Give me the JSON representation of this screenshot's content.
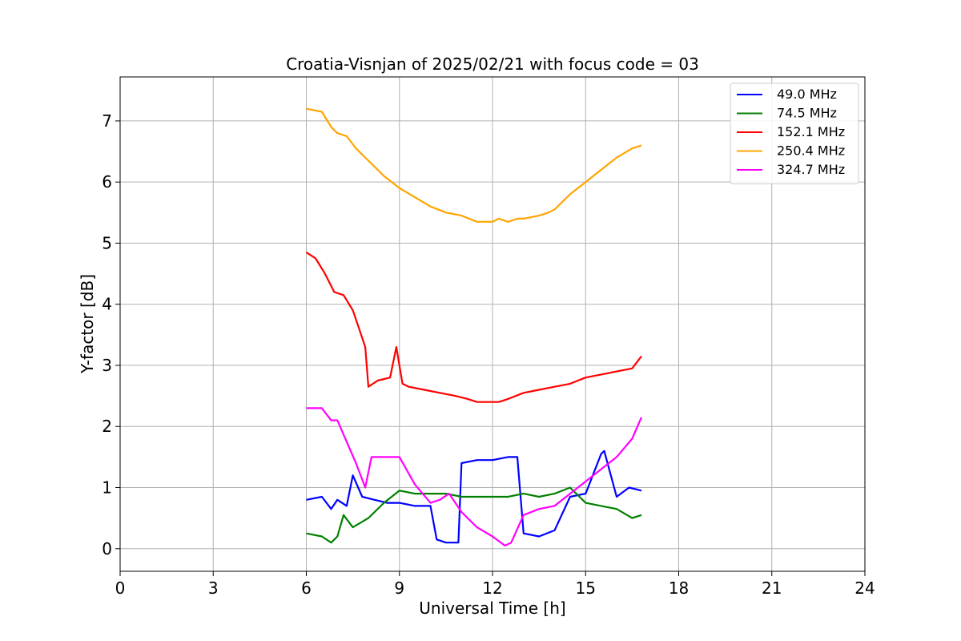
{
  "chart_data": {
    "type": "line",
    "title": "Croatia-Visnjan of 2025/02/21 with focus code = 03",
    "xlabel": "Universal Time [h]",
    "ylabel": "Y-factor [dB]",
    "xlim": [
      0,
      24
    ],
    "ylim": [
      -0.37,
      7.72
    ],
    "xticks": [
      "0",
      "3",
      "6",
      "9",
      "12",
      "15",
      "18",
      "21",
      "24"
    ],
    "yticks": [
      "0",
      "1",
      "2",
      "3",
      "4",
      "5",
      "6",
      "7"
    ],
    "grid": true,
    "legend_position": "top-right",
    "series": [
      {
        "name": "49.0 MHz",
        "color": "#0000ff",
        "x": [
          6.0,
          6.5,
          6.8,
          7.0,
          7.3,
          7.5,
          7.8,
          8.2,
          8.6,
          9.0,
          9.5,
          10.0,
          10.2,
          10.5,
          10.9,
          11.0,
          11.5,
          12.0,
          12.5,
          12.8,
          13.0,
          13.5,
          14.0,
          14.5,
          15.0,
          15.5,
          15.6,
          16.0,
          16.4,
          16.8
        ],
        "y": [
          0.8,
          0.85,
          0.65,
          0.8,
          0.7,
          1.2,
          0.85,
          0.8,
          0.75,
          0.75,
          0.7,
          0.7,
          0.15,
          0.1,
          0.1,
          1.4,
          1.45,
          1.45,
          1.5,
          1.5,
          0.25,
          0.2,
          0.3,
          0.85,
          0.9,
          1.55,
          1.6,
          0.85,
          1.0,
          0.95
        ]
      },
      {
        "name": "74.5 MHz",
        "color": "#008000",
        "x": [
          6.0,
          6.5,
          6.8,
          7.0,
          7.2,
          7.5,
          8.0,
          8.5,
          9.0,
          9.5,
          10.0,
          10.5,
          11.0,
          11.5,
          12.0,
          12.5,
          13.0,
          13.5,
          14.0,
          14.5,
          15.0,
          15.5,
          16.0,
          16.5,
          16.8
        ],
        "y": [
          0.25,
          0.2,
          0.1,
          0.2,
          0.55,
          0.35,
          0.5,
          0.75,
          0.95,
          0.9,
          0.9,
          0.9,
          0.85,
          0.85,
          0.85,
          0.85,
          0.9,
          0.85,
          0.9,
          1.0,
          0.75,
          0.7,
          0.65,
          0.5,
          0.55
        ]
      },
      {
        "name": "152.1 MHz",
        "color": "#ff0000",
        "x": [
          6.0,
          6.3,
          6.6,
          6.9,
          7.2,
          7.5,
          7.7,
          7.9,
          8.0,
          8.3,
          8.7,
          8.9,
          9.1,
          9.3,
          9.8,
          10.3,
          10.8,
          11.2,
          11.5,
          11.8,
          12.2,
          12.5,
          13.0,
          13.5,
          14.0,
          14.5,
          15.0,
          15.5,
          16.0,
          16.5,
          16.8
        ],
        "y": [
          4.85,
          4.75,
          4.5,
          4.2,
          4.15,
          3.9,
          3.6,
          3.3,
          2.65,
          2.75,
          2.8,
          3.3,
          2.7,
          2.65,
          2.6,
          2.55,
          2.5,
          2.45,
          2.4,
          2.4,
          2.4,
          2.45,
          2.55,
          2.6,
          2.65,
          2.7,
          2.8,
          2.85,
          2.9,
          2.95,
          3.15
        ]
      },
      {
        "name": "250.4 MHz",
        "color": "#ffa500",
        "x": [
          6.0,
          6.5,
          6.8,
          7.0,
          7.3,
          7.6,
          8.0,
          8.5,
          9.0,
          9.5,
          10.0,
          10.5,
          11.0,
          11.5,
          11.8,
          12.0,
          12.2,
          12.5,
          12.8,
          13.0,
          13.5,
          13.8,
          14.0,
          14.5,
          15.0,
          15.5,
          16.0,
          16.5,
          16.8
        ],
        "y": [
          7.2,
          7.15,
          6.9,
          6.8,
          6.75,
          6.55,
          6.35,
          6.1,
          5.9,
          5.75,
          5.6,
          5.5,
          5.45,
          5.35,
          5.35,
          5.35,
          5.4,
          5.35,
          5.4,
          5.4,
          5.45,
          5.5,
          5.55,
          5.8,
          6.0,
          6.2,
          6.4,
          6.55,
          6.6
        ]
      },
      {
        "name": "324.7 MHz",
        "color": "#ff00ff",
        "x": [
          6.0,
          6.5,
          6.8,
          7.0,
          7.3,
          7.6,
          7.9,
          8.1,
          8.5,
          9.0,
          9.5,
          10.0,
          10.3,
          10.6,
          11.0,
          11.5,
          12.0,
          12.4,
          12.6,
          13.0,
          13.5,
          14.0,
          14.5,
          15.0,
          15.5,
          16.0,
          16.5,
          16.8
        ],
        "y": [
          2.3,
          2.3,
          2.1,
          2.1,
          1.75,
          1.4,
          1.0,
          1.5,
          1.5,
          1.5,
          1.05,
          0.75,
          0.8,
          0.9,
          0.6,
          0.35,
          0.2,
          0.05,
          0.1,
          0.55,
          0.65,
          0.7,
          0.9,
          1.1,
          1.3,
          1.5,
          1.8,
          2.15
        ]
      }
    ]
  }
}
